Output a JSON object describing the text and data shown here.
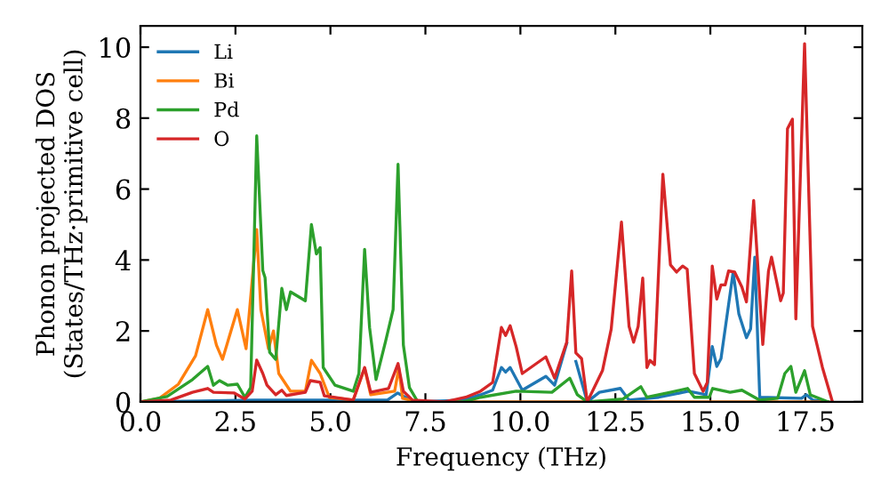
{
  "chart_data": {
    "type": "line",
    "xlabel": "Frequency (THz)",
    "ylabel": "Phonon projected DOS\n(States/THz·primitive cell)",
    "xlim": [
      0,
      19
    ],
    "ylim": [
      0,
      10.6
    ],
    "xticks": [
      {
        "value": 0,
        "label": "0.0"
      },
      {
        "value": 2.5,
        "label": "2.5"
      },
      {
        "value": 5,
        "label": "5.0"
      },
      {
        "value": 7.5,
        "label": "7.5"
      },
      {
        "value": 10,
        "label": "10.0"
      },
      {
        "value": 12.5,
        "label": "12.5"
      },
      {
        "value": 15,
        "label": "15.0"
      },
      {
        "value": 17.5,
        "label": "17.5"
      }
    ],
    "yticks": [
      0,
      2,
      4,
      6,
      8,
      10
    ],
    "grid": false,
    "legend": "top left",
    "series": [
      {
        "name": "Li",
        "color": "#1f77b4",
        "x": [
          0,
          3,
          6.5,
          6.77,
          7.2,
          8.5,
          8.95,
          9.27,
          9.5,
          9.61,
          9.73,
          10.05,
          10.67,
          10.9,
          11.22,
          11.35,
          11.46,
          11.76,
          12.08,
          12.63,
          12.86,
          13.64,
          14.42,
          14.89,
          15.05,
          15.17,
          15.28,
          15.6,
          15.75,
          15.95,
          16.06,
          16.17,
          16.3,
          17.4,
          17.53,
          17.7,
          18.1
        ],
        "values": [
          0,
          0.05,
          0.05,
          0.25,
          0,
          0.05,
          0.2,
          0.33,
          0.97,
          0.84,
          0.97,
          0.33,
          0.72,
          0.47,
          1.65,
          null,
          1.14,
          0,
          0.27,
          0.38,
          0.05,
          0.13,
          0.3,
          0.2,
          1.56,
          1.0,
          1.22,
          3.66,
          2.48,
          1.81,
          2.06,
          4.08,
          0.13,
          0.1,
          0.2,
          0.05,
          0
        ]
      },
      {
        "name": "Bi",
        "color": "#ff7f0e",
        "x": [
          0,
          0.5,
          1.0,
          1.45,
          1.77,
          2.0,
          2.16,
          2.55,
          2.78,
          3.06,
          3.17,
          3.37,
          3.5,
          3.64,
          3.95,
          4.34,
          4.5,
          4.73,
          4.97,
          5.6,
          5.9,
          6.06,
          6.69,
          6.8,
          6.9,
          7.3,
          18.1
        ],
        "values": [
          0,
          0.1,
          0.5,
          1.3,
          2.6,
          1.6,
          1.2,
          2.6,
          1.5,
          4.86,
          2.6,
          1.5,
          2.0,
          0.8,
          0.3,
          0.3,
          1.17,
          0.8,
          0.13,
          0.05,
          0.95,
          0.2,
          0.3,
          0.96,
          0.1,
          0,
          0
        ]
      },
      {
        "name": "Pd",
        "color": "#2ca02c",
        "x": [
          0,
          0.7,
          1.37,
          1.77,
          1.92,
          2.08,
          2.3,
          2.55,
          2.75,
          2.9,
          3.06,
          3.22,
          3.28,
          3.4,
          3.56,
          3.72,
          3.84,
          3.95,
          4.34,
          4.5,
          4.63,
          4.73,
          4.81,
          5.12,
          5.6,
          5.75,
          5.9,
          6.03,
          6.2,
          6.45,
          6.65,
          6.78,
          6.92,
          7.08,
          7.3,
          8.5,
          8.95,
          9.89,
          10.83,
          11.3,
          11.5,
          11.76,
          12.7,
          13.17,
          13.33,
          13.95,
          14.4,
          14.58,
          14.97,
          15.06,
          15.52,
          15.83,
          16.3,
          16.77,
          16.96,
          17.12,
          17.25,
          17.48,
          17.63,
          18.1
        ],
        "values": [
          0,
          0.15,
          0.63,
          1.0,
          0.47,
          0.6,
          0.47,
          0.5,
          0.13,
          0.4,
          7.5,
          3.7,
          3.5,
          1.4,
          1.2,
          3.2,
          2.6,
          3.1,
          2.85,
          5.0,
          4.17,
          4.35,
          0.97,
          0.47,
          0.3,
          0.8,
          4.3,
          2.1,
          0.63,
          1.7,
          2.6,
          6.7,
          1.6,
          0.4,
          0,
          0,
          0.13,
          0.3,
          0.27,
          0.67,
          0.2,
          0,
          0.08,
          0.43,
          0.13,
          0.27,
          0.38,
          0.13,
          0.13,
          0.38,
          0.27,
          0.33,
          0.05,
          0.1,
          0.8,
          1.0,
          0.27,
          0.88,
          0.2,
          0
        ]
      },
      {
        "name": "O",
        "color": "#d62728",
        "x": [
          0,
          0.8,
          1.37,
          1.77,
          1.92,
          2.47,
          2.75,
          2.94,
          3.06,
          3.22,
          3.33,
          3.56,
          3.72,
          3.84,
          4.34,
          4.47,
          4.73,
          4.84,
          5.6,
          5.9,
          6.06,
          6.53,
          6.78,
          6.92,
          7.16,
          8.0,
          8.56,
          8.95,
          9.27,
          9.5,
          9.61,
          9.73,
          9.89,
          10.05,
          10.67,
          10.9,
          11.22,
          11.35,
          11.46,
          11.61,
          11.76,
          12.16,
          12.39,
          12.66,
          12.86,
          12.98,
          13.1,
          13.22,
          13.33,
          13.41,
          13.53,
          13.75,
          13.95,
          14.11,
          14.27,
          14.39,
          14.58,
          14.81,
          14.92,
          15.05,
          15.17,
          15.28,
          15.39,
          15.48,
          15.64,
          15.83,
          15.95,
          16.14,
          16.38,
          16.53,
          16.61,
          16.85,
          16.92,
          17.03,
          17.16,
          17.25,
          17.48,
          17.69,
          17.95,
          18.2
        ],
        "values": [
          0,
          0.05,
          0.27,
          0.38,
          0.27,
          0.25,
          0.08,
          0.3,
          1.18,
          0.8,
          0.47,
          0.2,
          0.33,
          0.18,
          0.27,
          0.6,
          0.55,
          0.17,
          0.05,
          0.97,
          0.27,
          0.38,
          1.08,
          0.3,
          0.05,
          0,
          0.13,
          0.3,
          0.55,
          2.1,
          1.87,
          2.15,
          1.55,
          0.8,
          1.27,
          0.67,
          1.68,
          3.69,
          1.38,
          1.22,
          0,
          0.88,
          2.05,
          5.07,
          2.13,
          1.68,
          2.13,
          3.49,
          0.97,
          1.17,
          1.05,
          6.42,
          3.86,
          3.66,
          3.83,
          3.74,
          0.8,
          0.3,
          0.55,
          3.83,
          2.9,
          3.3,
          3.3,
          3.69,
          3.66,
          3.24,
          2.82,
          5.68,
          1.62,
          3.69,
          4.08,
          2.85,
          3.07,
          7.7,
          7.97,
          2.34,
          10.1,
          2.13,
          0.97,
          0.05
        ]
      }
    ]
  }
}
